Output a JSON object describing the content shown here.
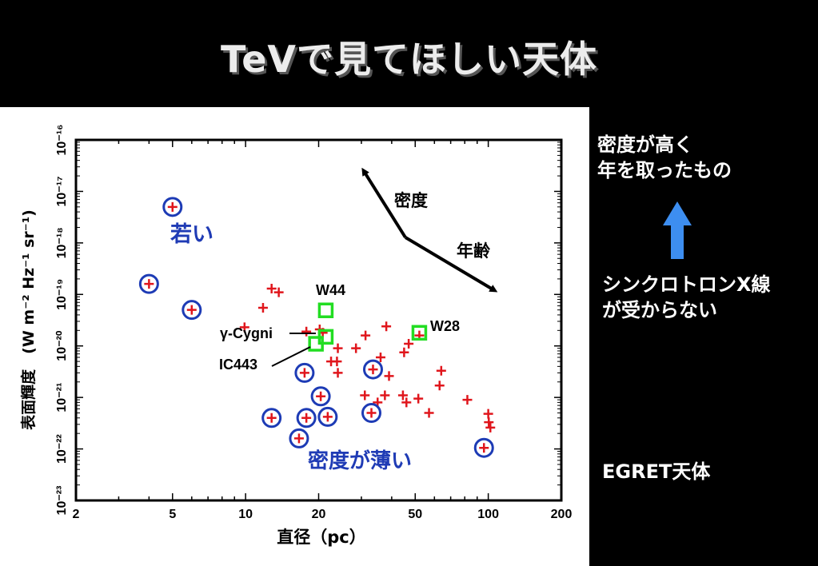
{
  "title": "TeVで見てほしい天体",
  "side_notes": {
    "dense_old": [
      "密度が高く",
      "年を取ったもの"
    ],
    "synchrotron": [
      "シンクロトロンX線",
      "が受からない"
    ],
    "egret": "EGRET天体"
  },
  "colors": {
    "plus": "#e0161c",
    "circle": "#1d3bb5",
    "square": "#22dd22",
    "arrow_blue": "#3d8ef0",
    "region_label": "#1f3bb5"
  },
  "chart_data": {
    "type": "scatter",
    "xscale": "log",
    "yscale": "log",
    "xlim": [
      2,
      200
    ],
    "ylim": [
      1e-23,
      1e-16
    ],
    "xlabel": "直径（pc）",
    "ylabel": "表面輝度　(W m⁻² Hz⁻¹ sr⁻¹)",
    "xticks": [
      {
        "v": 2,
        "label": "2"
      },
      {
        "v": 5,
        "label": "5"
      },
      {
        "v": 10,
        "label": "10"
      },
      {
        "v": 20,
        "label": "20"
      },
      {
        "v": 50,
        "label": "50"
      },
      {
        "v": 100,
        "label": "100"
      },
      {
        "v": 200,
        "label": "200"
      }
    ],
    "yticks": [
      {
        "exp": -23,
        "label": "10⁻²³"
      },
      {
        "exp": -22,
        "label": "10⁻²²"
      },
      {
        "exp": -21,
        "label": "10⁻²¹"
      },
      {
        "exp": -20,
        "label": "10⁻²⁰"
      },
      {
        "exp": -19,
        "label": "10⁻¹⁹"
      },
      {
        "exp": -18,
        "label": "10⁻¹⁸"
      },
      {
        "exp": -17,
        "label": "10⁻¹⁷"
      },
      {
        "exp": -16,
        "label": "10⁻¹⁶"
      }
    ],
    "plus_points": [
      [
        5.0,
        5e-18
      ],
      [
        4.0,
        1.6e-19
      ],
      [
        6.0,
        5e-20
      ],
      [
        12.8,
        1.3e-19
      ],
      [
        13.7,
        1.1e-19
      ],
      [
        11.8,
        5.5e-20
      ],
      [
        9.9,
        2.3e-20
      ],
      [
        17.8,
        1.9e-20
      ],
      [
        20.2,
        2.1e-20
      ],
      [
        20.8,
        1.8e-20
      ],
      [
        24.0,
        9e-21
      ],
      [
        22.5,
        5e-21
      ],
      [
        23.8,
        5e-21
      ],
      [
        24.0,
        3e-21
      ],
      [
        28.5,
        9e-21
      ],
      [
        31.2,
        1.6e-20
      ],
      [
        36.0,
        6e-21
      ],
      [
        39.0,
        2.6e-21
      ],
      [
        38.0,
        2.4e-20
      ],
      [
        45.0,
        7.5e-21
      ],
      [
        47.0,
        1.1e-20
      ],
      [
        52.0,
        1.6e-20
      ],
      [
        31.0,
        1.1e-21
      ],
      [
        35.0,
        8e-22
      ],
      [
        37.5,
        1.1e-21
      ],
      [
        44.5,
        1.1e-21
      ],
      [
        46.0,
        8e-22
      ],
      [
        51.5,
        9.5e-22
      ],
      [
        57.0,
        5e-22
      ],
      [
        63.0,
        1.7e-21
      ],
      [
        64.0,
        3.3e-21
      ],
      [
        82.0,
        9e-22
      ],
      [
        96.0,
        1.05e-22
      ],
      [
        100.0,
        4.8e-22
      ],
      [
        100.5,
        3.3e-22
      ],
      [
        102.0,
        2.6e-22
      ],
      [
        17.5,
        3e-21
      ],
      [
        20.4,
        1.05e-21
      ],
      [
        33.5,
        3.5e-21
      ],
      [
        33.0,
        5e-22
      ],
      [
        12.8,
        4e-22
      ],
      [
        17.8,
        4e-22
      ],
      [
        21.8,
        4.2e-22
      ],
      [
        16.6,
        1.6e-22
      ]
    ],
    "circled_points": [
      [
        5.0,
        5e-18
      ],
      [
        4.0,
        1.6e-19
      ],
      [
        6.0,
        5e-20
      ],
      [
        17.5,
        3e-21
      ],
      [
        20.4,
        1.05e-21
      ],
      [
        33.5,
        3.5e-21
      ],
      [
        33.0,
        5e-22
      ],
      [
        12.8,
        4e-22
      ],
      [
        17.8,
        4e-22
      ],
      [
        21.8,
        4.2e-22
      ],
      [
        16.6,
        1.6e-22
      ],
      [
        96.0,
        1.05e-22
      ]
    ],
    "green_squares": [
      {
        "name": "W44",
        "x": 21.4,
        "y": 4.9e-20
      },
      {
        "name": "γ-Cygni",
        "x": 21.4,
        "y": 1.5e-20
      },
      {
        "name": "IC443",
        "x": 19.5,
        "y": 1.1e-20
      },
      {
        "name": "W28",
        "x": 52.0,
        "y": 1.8e-20
      }
    ],
    "square_labels": {
      "W44": "W44",
      "W28": "W28",
      "gamma_cygni": "γ-Cygni",
      "ic443": "IC443"
    },
    "region_labels": {
      "young": "若い",
      "thin": "密度が薄い"
    },
    "arrow_labels": {
      "density": "密度",
      "age": "年齢"
    }
  }
}
